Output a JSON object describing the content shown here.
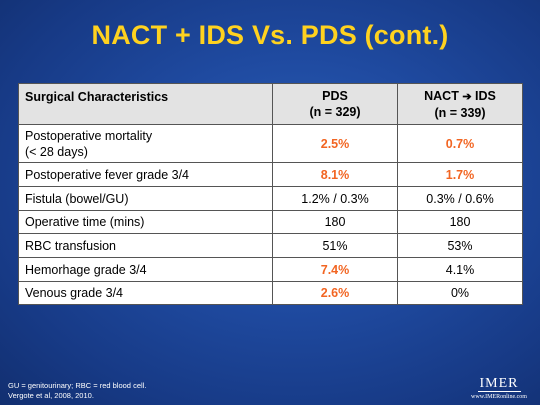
{
  "title": "NACT + IDS Vs. PDS (cont.)",
  "table": {
    "headers": {
      "characteristic": "Surgical Characteristics",
      "pds_line1": "PDS",
      "pds_line2": "(n = 329)",
      "nact_pre": "NACT",
      "nact_arrow": "➔",
      "nact_post": "IDS",
      "nact_line2": "(n = 339)"
    },
    "rows": [
      {
        "label": "Postoperative mortality",
        "label2": "(< 28 days)",
        "pds": "2.5%",
        "nact": "0.7%"
      },
      {
        "label": "Postoperative fever grade 3/4",
        "pds": "8.1%",
        "nact": "1.7%"
      },
      {
        "label": "Fistula (bowel/GU)",
        "pds": "1.2% / 0.3%",
        "nact": "0.3% / 0.6%"
      },
      {
        "label": "Operative time (mins)",
        "pds": "180",
        "nact": "180"
      },
      {
        "label": "RBC transfusion",
        "pds": "51%",
        "nact": "53%"
      },
      {
        "label": "Hemorhage grade 3/4",
        "pds": "7.4%",
        "nact": "4.1%"
      },
      {
        "label": "Venous grade 3/4",
        "pds": "2.6%",
        "nact": "0%"
      }
    ]
  },
  "footnote": {
    "line1": "GU = genitourinary; RBC = red blood cell.",
    "line2": "Vergote et al, 2008, 2010."
  },
  "logo": {
    "mark": "IMER",
    "url": "www.IMERonline.com"
  },
  "colors": {
    "title": "#ffd21f",
    "highlight": "#f26522",
    "background": "#1f4aa0"
  }
}
